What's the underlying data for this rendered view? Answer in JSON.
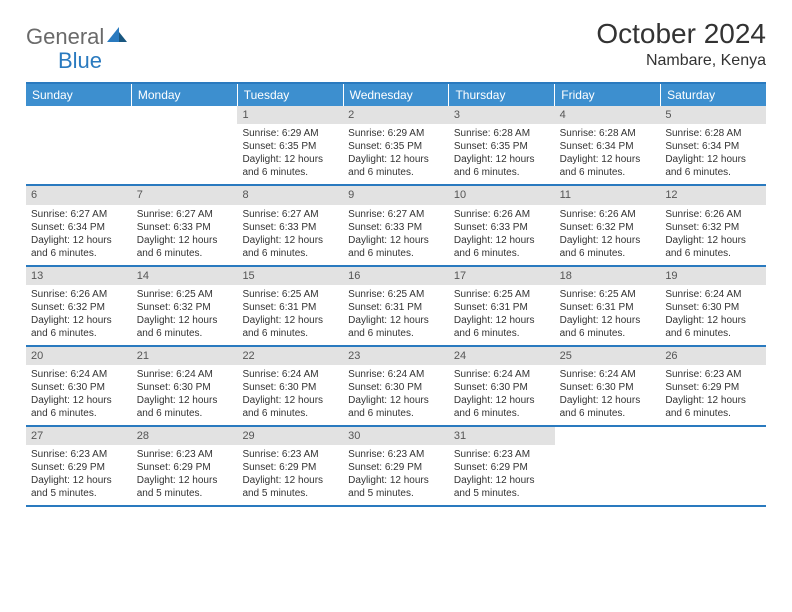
{
  "brand": {
    "word1": "General",
    "word2": "Blue"
  },
  "title": "October 2024",
  "location": "Nambare, Kenya",
  "colors": {
    "header_bg": "#3d8fcf",
    "border": "#2a7abf",
    "daynum_bg": "#e2e2e2",
    "text": "#333333"
  },
  "day_headers": [
    "Sunday",
    "Monday",
    "Tuesday",
    "Wednesday",
    "Thursday",
    "Friday",
    "Saturday"
  ],
  "weeks": [
    [
      null,
      null,
      {
        "n": "1",
        "sr": "Sunrise: 6:29 AM",
        "ss": "Sunset: 6:35 PM",
        "dl": "Daylight: 12 hours and 6 minutes."
      },
      {
        "n": "2",
        "sr": "Sunrise: 6:29 AM",
        "ss": "Sunset: 6:35 PM",
        "dl": "Daylight: 12 hours and 6 minutes."
      },
      {
        "n": "3",
        "sr": "Sunrise: 6:28 AM",
        "ss": "Sunset: 6:35 PM",
        "dl": "Daylight: 12 hours and 6 minutes."
      },
      {
        "n": "4",
        "sr": "Sunrise: 6:28 AM",
        "ss": "Sunset: 6:34 PM",
        "dl": "Daylight: 12 hours and 6 minutes."
      },
      {
        "n": "5",
        "sr": "Sunrise: 6:28 AM",
        "ss": "Sunset: 6:34 PM",
        "dl": "Daylight: 12 hours and 6 minutes."
      }
    ],
    [
      {
        "n": "6",
        "sr": "Sunrise: 6:27 AM",
        "ss": "Sunset: 6:34 PM",
        "dl": "Daylight: 12 hours and 6 minutes."
      },
      {
        "n": "7",
        "sr": "Sunrise: 6:27 AM",
        "ss": "Sunset: 6:33 PM",
        "dl": "Daylight: 12 hours and 6 minutes."
      },
      {
        "n": "8",
        "sr": "Sunrise: 6:27 AM",
        "ss": "Sunset: 6:33 PM",
        "dl": "Daylight: 12 hours and 6 minutes."
      },
      {
        "n": "9",
        "sr": "Sunrise: 6:27 AM",
        "ss": "Sunset: 6:33 PM",
        "dl": "Daylight: 12 hours and 6 minutes."
      },
      {
        "n": "10",
        "sr": "Sunrise: 6:26 AM",
        "ss": "Sunset: 6:33 PM",
        "dl": "Daylight: 12 hours and 6 minutes."
      },
      {
        "n": "11",
        "sr": "Sunrise: 6:26 AM",
        "ss": "Sunset: 6:32 PM",
        "dl": "Daylight: 12 hours and 6 minutes."
      },
      {
        "n": "12",
        "sr": "Sunrise: 6:26 AM",
        "ss": "Sunset: 6:32 PM",
        "dl": "Daylight: 12 hours and 6 minutes."
      }
    ],
    [
      {
        "n": "13",
        "sr": "Sunrise: 6:26 AM",
        "ss": "Sunset: 6:32 PM",
        "dl": "Daylight: 12 hours and 6 minutes."
      },
      {
        "n": "14",
        "sr": "Sunrise: 6:25 AM",
        "ss": "Sunset: 6:32 PM",
        "dl": "Daylight: 12 hours and 6 minutes."
      },
      {
        "n": "15",
        "sr": "Sunrise: 6:25 AM",
        "ss": "Sunset: 6:31 PM",
        "dl": "Daylight: 12 hours and 6 minutes."
      },
      {
        "n": "16",
        "sr": "Sunrise: 6:25 AM",
        "ss": "Sunset: 6:31 PM",
        "dl": "Daylight: 12 hours and 6 minutes."
      },
      {
        "n": "17",
        "sr": "Sunrise: 6:25 AM",
        "ss": "Sunset: 6:31 PM",
        "dl": "Daylight: 12 hours and 6 minutes."
      },
      {
        "n": "18",
        "sr": "Sunrise: 6:25 AM",
        "ss": "Sunset: 6:31 PM",
        "dl": "Daylight: 12 hours and 6 minutes."
      },
      {
        "n": "19",
        "sr": "Sunrise: 6:24 AM",
        "ss": "Sunset: 6:30 PM",
        "dl": "Daylight: 12 hours and 6 minutes."
      }
    ],
    [
      {
        "n": "20",
        "sr": "Sunrise: 6:24 AM",
        "ss": "Sunset: 6:30 PM",
        "dl": "Daylight: 12 hours and 6 minutes."
      },
      {
        "n": "21",
        "sr": "Sunrise: 6:24 AM",
        "ss": "Sunset: 6:30 PM",
        "dl": "Daylight: 12 hours and 6 minutes."
      },
      {
        "n": "22",
        "sr": "Sunrise: 6:24 AM",
        "ss": "Sunset: 6:30 PM",
        "dl": "Daylight: 12 hours and 6 minutes."
      },
      {
        "n": "23",
        "sr": "Sunrise: 6:24 AM",
        "ss": "Sunset: 6:30 PM",
        "dl": "Daylight: 12 hours and 6 minutes."
      },
      {
        "n": "24",
        "sr": "Sunrise: 6:24 AM",
        "ss": "Sunset: 6:30 PM",
        "dl": "Daylight: 12 hours and 6 minutes."
      },
      {
        "n": "25",
        "sr": "Sunrise: 6:24 AM",
        "ss": "Sunset: 6:30 PM",
        "dl": "Daylight: 12 hours and 6 minutes."
      },
      {
        "n": "26",
        "sr": "Sunrise: 6:23 AM",
        "ss": "Sunset: 6:29 PM",
        "dl": "Daylight: 12 hours and 6 minutes."
      }
    ],
    [
      {
        "n": "27",
        "sr": "Sunrise: 6:23 AM",
        "ss": "Sunset: 6:29 PM",
        "dl": "Daylight: 12 hours and 5 minutes."
      },
      {
        "n": "28",
        "sr": "Sunrise: 6:23 AM",
        "ss": "Sunset: 6:29 PM",
        "dl": "Daylight: 12 hours and 5 minutes."
      },
      {
        "n": "29",
        "sr": "Sunrise: 6:23 AM",
        "ss": "Sunset: 6:29 PM",
        "dl": "Daylight: 12 hours and 5 minutes."
      },
      {
        "n": "30",
        "sr": "Sunrise: 6:23 AM",
        "ss": "Sunset: 6:29 PM",
        "dl": "Daylight: 12 hours and 5 minutes."
      },
      {
        "n": "31",
        "sr": "Sunrise: 6:23 AM",
        "ss": "Sunset: 6:29 PM",
        "dl": "Daylight: 12 hours and 5 minutes."
      },
      null,
      null
    ]
  ]
}
